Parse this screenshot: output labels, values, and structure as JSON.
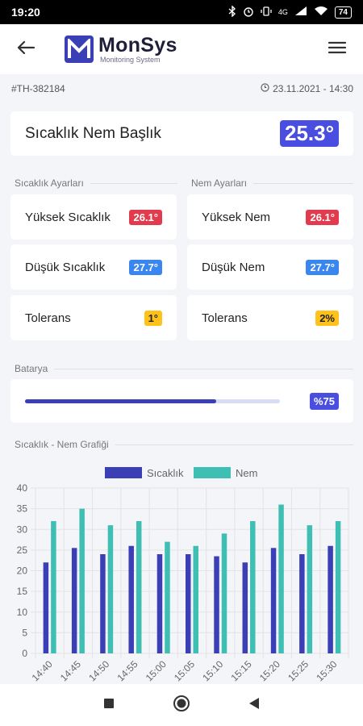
{
  "status_bar": {
    "time": "19:20",
    "network": "4G",
    "battery": "74"
  },
  "app": {
    "name": "MonSys",
    "subtitle": "Monitoring System"
  },
  "device": {
    "id": "#TH-382184",
    "datetime": "23.11.2021 - 14:30"
  },
  "title_card": {
    "title": "Sıcaklık Nem Başlık",
    "value": "25.3°"
  },
  "temp_settings": {
    "label": "Sıcaklık Ayarları",
    "items": [
      {
        "label": "Yüksek Sıcaklık",
        "value": "26.1°",
        "color": "#e23b4e"
      },
      {
        "label": "Düşük Sıcaklık",
        "value": "27.7°",
        "color": "#3a86f0"
      },
      {
        "label": "Tolerans",
        "value": "1°",
        "color": "#ffc21a"
      }
    ]
  },
  "hum_settings": {
    "label": "Nem Ayarları",
    "items": [
      {
        "label": "Yüksek Nem",
        "value": "26.1°",
        "color": "#e23b4e"
      },
      {
        "label": "Düşük Nem",
        "value": "27.7°",
        "color": "#3a86f0"
      },
      {
        "label": "Tolerans",
        "value": "2%",
        "color": "#ffc21a"
      }
    ]
  },
  "battery": {
    "label": "Batarya",
    "level": 0.75,
    "value_text": "%75"
  },
  "chart_section": {
    "label": "Sıcaklık - Nem Grafiği"
  },
  "chart_data": {
    "type": "bar",
    "categories": [
      "14:40",
      "14:45",
      "14:50",
      "14:55",
      "15:00",
      "15:05",
      "15:10",
      "15:15",
      "15:20",
      "15:25",
      "15:30"
    ],
    "series": [
      {
        "name": "Sıcaklık",
        "color": "#3b3fb6",
        "values": [
          22,
          25.5,
          24,
          26,
          24,
          24,
          23.5,
          22,
          25.5,
          24,
          26
        ]
      },
      {
        "name": "Nem",
        "color": "#3fbfb4",
        "values": [
          32,
          35,
          31,
          32,
          27,
          26,
          29,
          32,
          36,
          31,
          32
        ]
      }
    ],
    "yticks": [
      0,
      5,
      10,
      15,
      20,
      25,
      30,
      35,
      40
    ],
    "ylim": [
      0,
      40
    ],
    "grid": true,
    "legend": "top-center"
  },
  "icons": {
    "back": "arrow-left-icon",
    "menu": "hamburger-menu-icon",
    "clock": "clock-icon"
  }
}
